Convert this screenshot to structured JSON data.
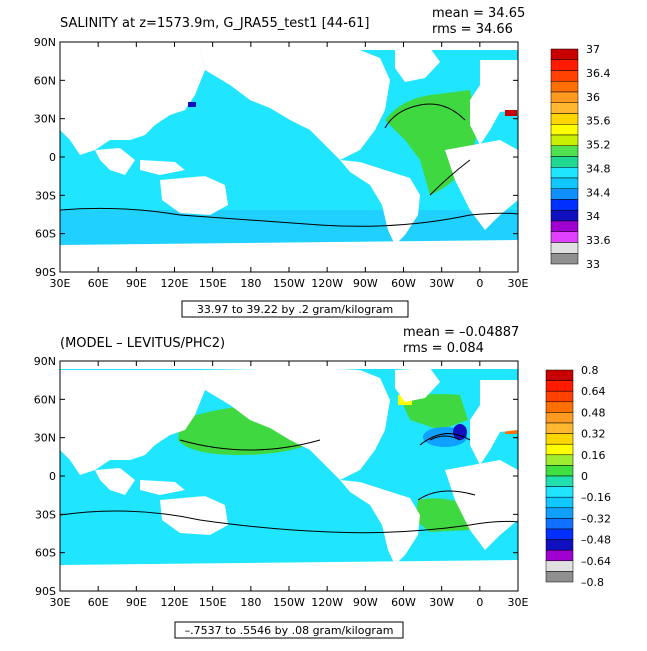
{
  "panels": [
    {
      "title": "SALINITY at z=1573.9m, G_JRA55_test1 [44-61]",
      "mean_text": "mean = 34.65",
      "rms_text": "rms = 34.66",
      "range_text": "33.97 to 39.22 by .2 gram/kilogram",
      "colorbar_labels": [
        "37",
        "36.4",
        "36",
        "35.6",
        "35.2",
        "34.8",
        "34.4",
        "34",
        "33.6",
        "33"
      ],
      "ocean_color": "#1fe5ff",
      "colorbar_colors": [
        "#c80000",
        "#ff1a00",
        "#ff4000",
        "#ff7000",
        "#ff9a20",
        "#ffb830",
        "#ffd600",
        "#ffff00",
        "#c8f000",
        "#50e050",
        "#20d890",
        "#1fe5ff",
        "#10c8ff",
        "#1090ff",
        "#0030ff",
        "#1010c0",
        "#a000d0",
        "#e040ff",
        "#e0e0e0",
        "#909090"
      ]
    },
    {
      "title": "(MODEL – LEVITUS/PHC2)",
      "mean_text": "mean = –0.04887",
      "rms_text": "rms = 0.084",
      "range_text": "–.7537 to .5546 by .08 gram/kilogram",
      "colorbar_labels": [
        "0.8",
        "0.64",
        "0.48",
        "0.32",
        "0.16",
        "0",
        "–0.16",
        "–0.32",
        "–0.48",
        "–0.64",
        "–0.8"
      ],
      "ocean_color": "#1fe5ff",
      "colorbar_colors": [
        "#c80000",
        "#ff1a00",
        "#ff4000",
        "#ff7000",
        "#ff9a20",
        "#ffb830",
        "#ffd600",
        "#ffff00",
        "#a0ec30",
        "#40e040",
        "#20e0b0",
        "#1fe5ff",
        "#10c8ff",
        "#10a0ff",
        "#1070ff",
        "#0030ff",
        "#1010c0",
        "#a000d0",
        "#e0e0e0",
        "#909090"
      ]
    }
  ],
  "lat_labels": [
    "90N",
    "60N",
    "30N",
    "0",
    "30S",
    "60S",
    "90S"
  ],
  "lon_labels": [
    "30E",
    "60E",
    "90E",
    "120E",
    "150E",
    "180",
    "150W",
    "120W",
    "90W",
    "60W",
    "30W",
    "0",
    "30E"
  ],
  "colors": {
    "land": "#ffffff",
    "atlantic_high": "#40d840",
    "southern_low": "#20d0ff"
  }
}
